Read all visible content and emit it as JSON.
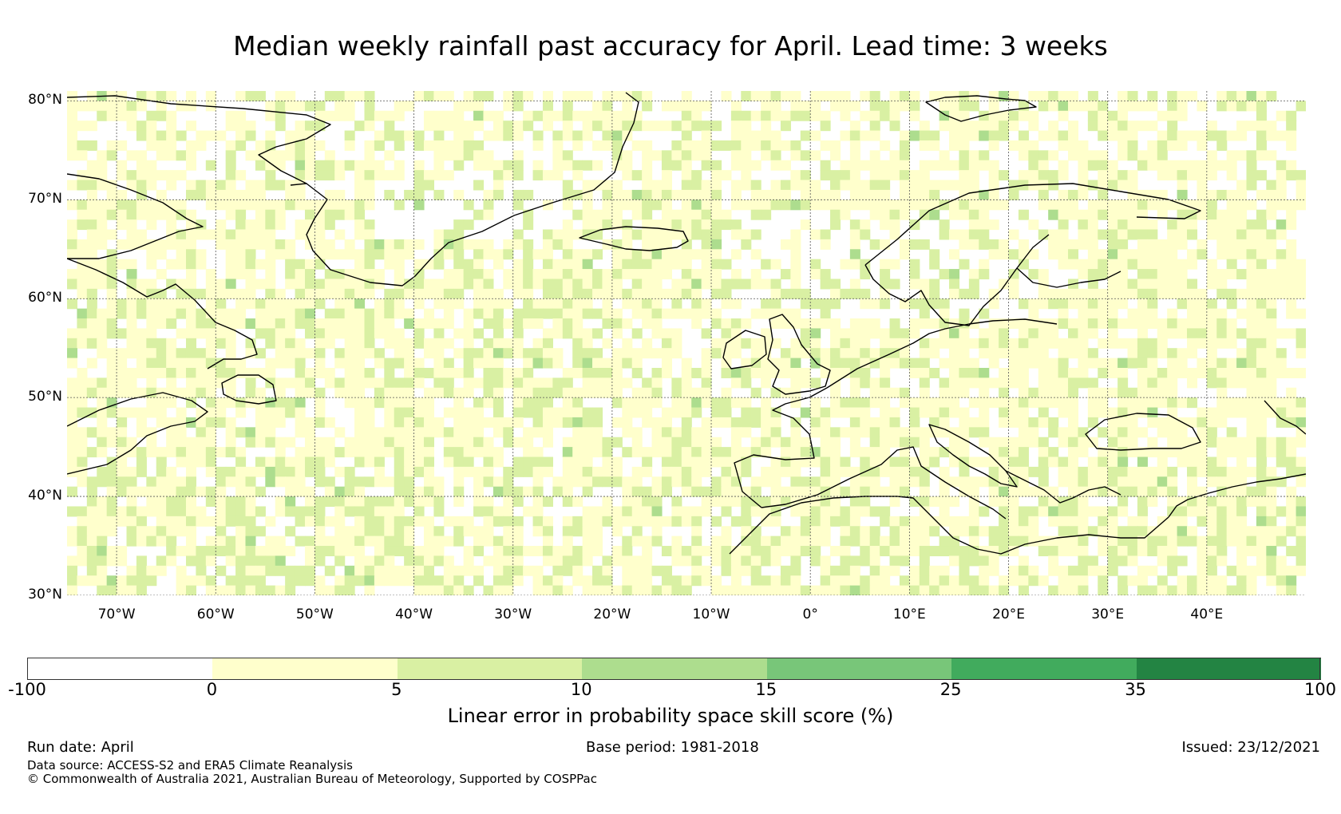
{
  "title": "Median weekly rainfall past accuracy for April. Lead time: 3 weeks",
  "map": {
    "lon_range": [
      -75,
      50
    ],
    "lat_range": [
      30,
      81
    ],
    "lat_labels": [
      {
        "lat": 80,
        "text": "80°N"
      },
      {
        "lat": 70,
        "text": "70°N"
      },
      {
        "lat": 60,
        "text": "60°N"
      },
      {
        "lat": 50,
        "text": "50°N"
      },
      {
        "lat": 40,
        "text": "40°N"
      },
      {
        "lat": 30,
        "text": "30°N"
      }
    ],
    "lon_labels": [
      {
        "lon": -70,
        "text": "70°W"
      },
      {
        "lon": -60,
        "text": "60°W"
      },
      {
        "lon": -50,
        "text": "50°W"
      },
      {
        "lon": -40,
        "text": "40°W"
      },
      {
        "lon": -30,
        "text": "30°W"
      },
      {
        "lon": -20,
        "text": "20°W"
      },
      {
        "lon": -10,
        "text": "10°W"
      },
      {
        "lon": 0,
        "text": "0°"
      },
      {
        "lon": 10,
        "text": "10°E"
      },
      {
        "lon": 20,
        "text": "20°E"
      },
      {
        "lon": 30,
        "text": "30°E"
      },
      {
        "lon": 40,
        "text": "40°E"
      }
    ],
    "colors": {
      "bin_neg": "#ffffff",
      "bin_0_5": "#ffffcc",
      "bin_5_10": "#d9f0a3",
      "bin_10_15": "#addd8e",
      "bin_15_25": "#78c679",
      "bin_25_35": "#41ab5d",
      "bin_35_100": "#238443",
      "coast": "#000000",
      "grid": "#555555"
    }
  },
  "colorbar": {
    "bins": [
      {
        "from": -100,
        "to": 0,
        "color": "#ffffff"
      },
      {
        "from": 0,
        "to": 5,
        "color": "#ffffcc"
      },
      {
        "from": 5,
        "to": 10,
        "color": "#d9f0a3"
      },
      {
        "from": 10,
        "to": 15,
        "color": "#addd8e"
      },
      {
        "from": 15,
        "to": 25,
        "color": "#78c679"
      },
      {
        "from": 25,
        "to": 35,
        "color": "#41ab5d"
      },
      {
        "from": 35,
        "to": 100,
        "color": "#238443"
      }
    ],
    "ticks": [
      "-100",
      "0",
      "5",
      "10",
      "15",
      "25",
      "35",
      "100"
    ],
    "label": "Linear error in probability space skill score (%)"
  },
  "footer": {
    "run_date": "Run date: April",
    "base_period": "Base period: 1981-2018",
    "issued": "Issued: 23/12/2021",
    "data_source": "Data source: ACCESS-S2 and ERA5 Climate Reanalysis",
    "copyright": "© Commonwealth of Australia 2021, Australian Bureau of Meteorology, Supported by COSPPac"
  }
}
